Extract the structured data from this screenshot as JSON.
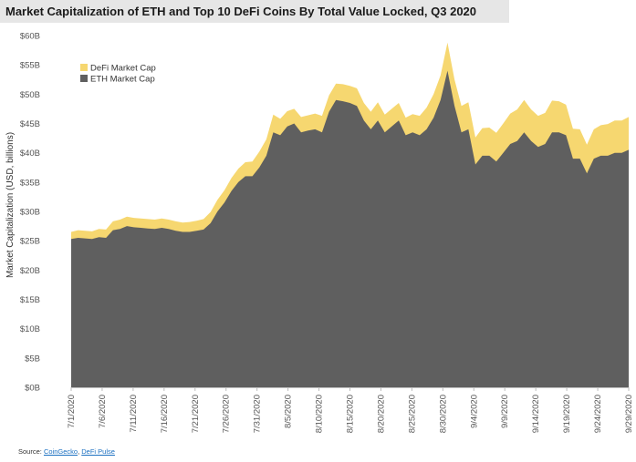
{
  "source": {
    "label": "Source:",
    "link1": "CoinGecko",
    "separator": ",",
    "link2": "DeFi Pulse"
  },
  "chart_data": {
    "type": "area",
    "title": "Market Capitalization of ETH and Top 10 DeFi Coins By Total Value Locked, Q3 2020",
    "ylabel": "Market Capitalization (USD, billions)",
    "xlabel": "",
    "y_ticks": [
      "$0B",
      "$5B",
      "$10B",
      "$15B",
      "$20B",
      "$25B",
      "$30B",
      "$35B",
      "$40B",
      "$45B",
      "$50B",
      "$55B",
      "$60B"
    ],
    "ylim": [
      0,
      60
    ],
    "x_tick_labels": [
      "7/1/2020",
      "7/6/2020",
      "7/11/2020",
      "7/16/2020",
      "7/21/2020",
      "7/26/2020",
      "7/31/2020",
      "8/5/2020",
      "8/10/2020",
      "8/15/2020",
      "8/20/2020",
      "8/25/2020",
      "8/30/2020",
      "9/4/2020",
      "9/9/2020",
      "9/14/2020",
      "9/19/2020",
      "9/24/2020",
      "9/29/2020"
    ],
    "x_start_day": 0,
    "x_end_day": 90,
    "stacked": true,
    "legend_position": "top-left",
    "grid": false,
    "series": [
      {
        "name": "ETH Market Cap",
        "color": "#5f5f5f",
        "values": [
          25.3,
          25.5,
          25.4,
          25.3,
          25.6,
          25.5,
          26.8,
          27.0,
          27.5,
          27.3,
          27.2,
          27.1,
          27.0,
          27.2,
          27.0,
          26.7,
          26.5,
          26.5,
          26.7,
          26.9,
          28.0,
          30.0,
          31.5,
          33.5,
          35.0,
          36.0,
          36.0,
          37.5,
          39.5,
          43.5,
          43.0,
          44.5,
          45.0,
          43.5,
          43.8,
          44.0,
          43.5,
          47.0,
          49.0,
          48.8,
          48.5,
          48.0,
          45.5,
          44.0,
          45.5,
          43.5,
          44.5,
          45.5,
          43.0,
          43.5,
          43.0,
          44.0,
          46.0,
          49.0,
          54.0,
          48.0,
          43.5,
          44.0,
          38.0,
          39.5,
          39.5,
          38.5,
          40.0,
          41.5,
          42.0,
          43.5,
          42.0,
          41.0,
          41.5,
          43.5,
          43.5,
          43.0,
          39.0,
          39.0,
          36.5,
          39.0,
          39.5,
          39.5,
          40.0,
          40.0,
          40.5
        ]
      },
      {
        "name": "DeFi Market Cap",
        "color": "#f6d770",
        "values": [
          1.2,
          1.3,
          1.3,
          1.3,
          1.4,
          1.4,
          1.5,
          1.6,
          1.6,
          1.6,
          1.6,
          1.6,
          1.6,
          1.6,
          1.6,
          1.6,
          1.6,
          1.7,
          1.7,
          1.8,
          1.9,
          2.0,
          2.1,
          2.2,
          2.3,
          2.4,
          2.5,
          2.7,
          2.8,
          3.0,
          2.8,
          2.6,
          2.5,
          2.6,
          2.6,
          2.7,
          2.8,
          2.8,
          2.8,
          2.9,
          2.9,
          3.0,
          3.0,
          3.0,
          3.1,
          3.0,
          3.0,
          3.0,
          3.0,
          3.1,
          3.3,
          3.7,
          4.0,
          4.2,
          4.8,
          4.5,
          4.5,
          4.6,
          4.6,
          4.7,
          4.8,
          4.9,
          5.0,
          5.2,
          5.4,
          5.5,
          5.4,
          5.3,
          5.3,
          5.4,
          5.3,
          5.2,
          5.1,
          5.0,
          4.9,
          5.0,
          5.2,
          5.4,
          5.5,
          5.5,
          5.6
        ]
      }
    ]
  }
}
